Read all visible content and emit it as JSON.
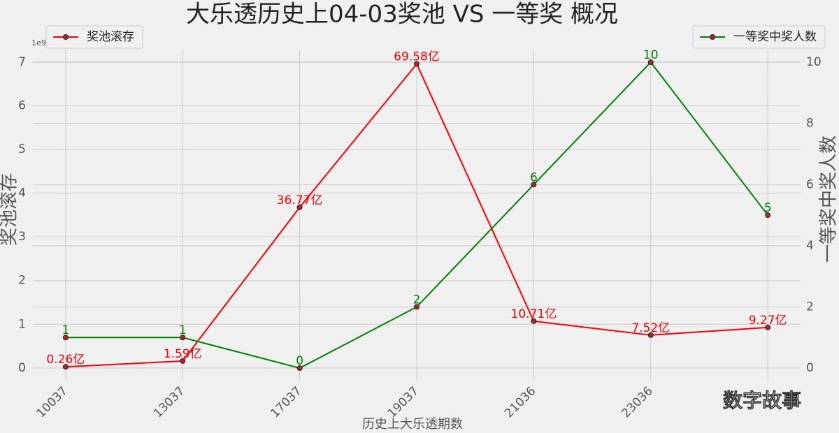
{
  "chart_data": {
    "type": "line",
    "title": "大乐透历史上04-03奖池 VS 一等奖 概况",
    "xlabel": "历史上大乐透期数",
    "ylabel": "奖池滚存",
    "y2label": "一等奖中奖人数",
    "offset_label": "1e9",
    "watermark": "数字故事",
    "categories": [
      "10037",
      "13037",
      "17037",
      "19037",
      "21036",
      "23036",
      null
    ],
    "series": [
      {
        "name": "奖池滚存",
        "color": "#ff0000",
        "legend_loc": "upper left",
        "values": [
          0.026,
          0.159,
          3.677,
          6.958,
          1.071,
          0.752,
          0.927
        ],
        "value_labels": [
          "0.26亿",
          "1.59亿",
          "36.77亿",
          "69.58亿",
          "10.71亿",
          "7.52亿",
          "9.27亿"
        ]
      },
      {
        "name": "一等奖中奖人数",
        "color": "#008000",
        "legend_loc": "upper right",
        "axis": "y2",
        "values": [
          1,
          1,
          0,
          2,
          6,
          10,
          5
        ]
      }
    ],
    "ylim": [
      -0.29,
      7.27
    ],
    "yticks": [
      0,
      1,
      2,
      3,
      4,
      5,
      6,
      7
    ],
    "y2lim": [
      -0.41,
      10.39
    ],
    "y2ticks": [
      0,
      2,
      4,
      6,
      8,
      10
    ],
    "grid": true
  }
}
